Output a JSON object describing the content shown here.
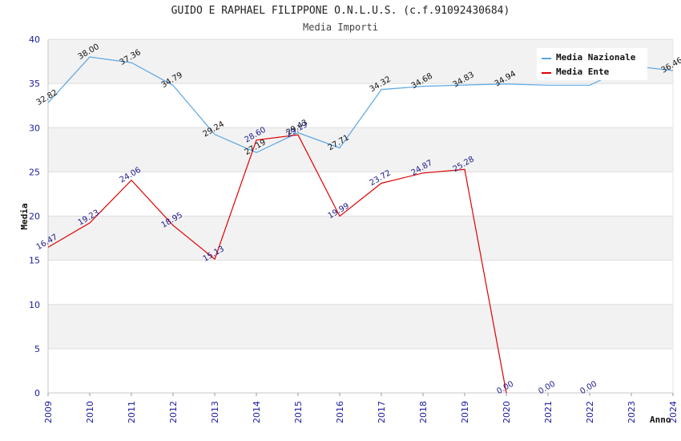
{
  "chart_data": {
    "type": "line",
    "title": "GUIDO E RAPHAEL FILIPPONE O.N.L.U.S. (c.f.91092430684)",
    "subtitle": "Media Importi",
    "xlabel": "Anno",
    "ylabel": "Media",
    "ylim": [
      0,
      40
    ],
    "yticks": [
      "0",
      "5",
      "10",
      "15",
      "20",
      "25",
      "30",
      "35",
      "40"
    ],
    "categories": [
      "2009",
      "2010",
      "2011",
      "2012",
      "2013",
      "2014",
      "2015",
      "2016",
      "2017",
      "2018",
      "2019",
      "2020",
      "2021",
      "2022",
      "2023",
      "2024"
    ],
    "grid": "horizontal bands",
    "legend_position": "top-right",
    "series": [
      {
        "name": "Media Nazionale",
        "color": "#5aa7e6",
        "label_color": "#111111",
        "values": [
          32.82,
          38.0,
          37.36,
          34.79,
          29.24,
          27.19,
          29.43,
          27.71,
          34.32,
          34.68,
          34.83,
          34.94,
          34.8,
          34.8,
          37.0,
          36.46
        ],
        "labels": [
          "32.82",
          "38.00",
          "37.36",
          "34.79",
          "29.24",
          "27.19",
          "29.43",
          "27.71",
          "34.32",
          "34.68",
          "34.83",
          "34.94",
          "",
          "",
          "",
          "36.46"
        ]
      },
      {
        "name": "Media Ente",
        "color": "#e00000",
        "label_color": "#1a1a8c",
        "values": [
          16.47,
          19.23,
          24.06,
          18.95,
          15.13,
          28.6,
          29.19,
          19.99,
          23.72,
          24.87,
          25.28,
          0.0,
          null,
          null,
          null,
          null
        ],
        "labels": [
          "16.47",
          "19.23",
          "24.06",
          "18.95",
          "15.13",
          "28.60",
          "29.19",
          "19.99",
          "23.72",
          "24.87",
          "25.28",
          "0.00",
          "0.00",
          "0.00",
          "",
          ""
        ]
      }
    ]
  }
}
